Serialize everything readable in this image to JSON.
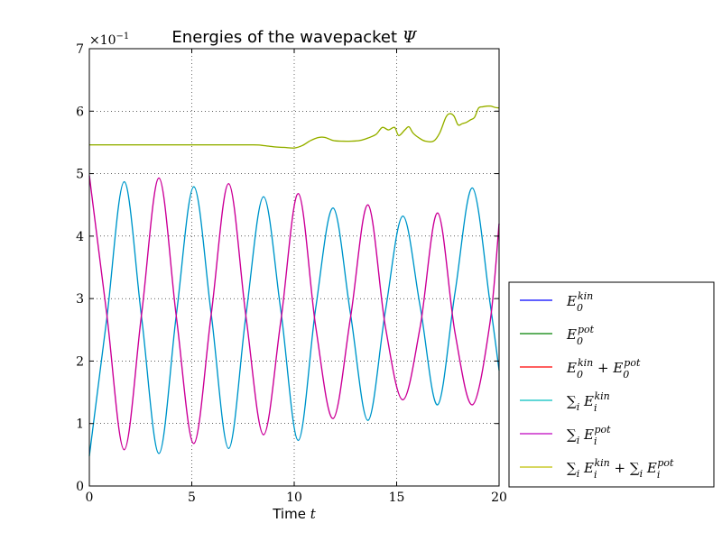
{
  "chart_data": {
    "type": "line",
    "title": "Energies of the wavepacket Ψ",
    "title_text": "Energies of the wavepacket ",
    "title_symbol": "Ψ",
    "xlabel_text": "Time ",
    "xlabel_var": "t",
    "ylabel": "",
    "y_scale_label": "×10",
    "y_scale_exp": "−1",
    "xlim": [
      0,
      20
    ],
    "ylim": [
      0,
      0.7
    ],
    "x_ticks": [
      0,
      5,
      10,
      15,
      20
    ],
    "x_tick_labels": [
      "0",
      "5",
      "10",
      "15",
      "20"
    ],
    "y_ticks": [
      0,
      0.1,
      0.2,
      0.3,
      0.4,
      0.5,
      0.6,
      0.7
    ],
    "y_tick_labels": [
      "0",
      "1",
      "2",
      "3",
      "4",
      "5",
      "6",
      "7"
    ],
    "grid": true,
    "legend_position": "lower-right, outside plot",
    "series": [
      {
        "name": "E_0^kin",
        "color": "#0000ff",
        "x": [],
        "y": []
      },
      {
        "name": "E_0^pot",
        "color": "#008000",
        "x": [],
        "y": []
      },
      {
        "name": "E_0^kin + E_0^pot",
        "color": "#ff0000",
        "x": [],
        "y": []
      },
      {
        "name": "Σ_i E_i^kin",
        "color": "#00bfbf",
        "x": [
          0,
          0.85,
          1.7,
          2.55,
          3.4,
          4.25,
          5.1,
          5.95,
          6.8,
          7.65,
          8.5,
          9.35,
          10.2,
          11.05,
          11.9,
          12.75,
          13.6,
          14.45,
          15.3,
          16.15,
          17.0,
          17.85,
          18.7,
          19.55,
          20.0
        ],
        "y": [
          0.048,
          0.268,
          0.487,
          0.27,
          0.052,
          0.275,
          0.479,
          0.275,
          0.06,
          0.275,
          0.463,
          0.28,
          0.073,
          0.285,
          0.445,
          0.275,
          0.105,
          0.28,
          0.432,
          0.287,
          0.13,
          0.31,
          0.477,
          0.295,
          0.185
        ]
      },
      {
        "name": "Σ_i E_i^pot",
        "color": "#bf00bf",
        "x": [
          0,
          0.85,
          1.7,
          2.55,
          3.4,
          4.25,
          5.1,
          5.95,
          6.8,
          7.65,
          8.5,
          9.35,
          10.2,
          11.05,
          11.9,
          12.75,
          13.6,
          14.45,
          15.3,
          16.15,
          17.0,
          17.85,
          18.7,
          19.55,
          20.0
        ],
        "y": [
          0.497,
          0.275,
          0.058,
          0.275,
          0.493,
          0.27,
          0.068,
          0.275,
          0.484,
          0.27,
          0.082,
          0.265,
          0.468,
          0.255,
          0.108,
          0.27,
          0.45,
          0.255,
          0.138,
          0.255,
          0.437,
          0.245,
          0.13,
          0.26,
          0.42
        ]
      },
      {
        "name": "Σ_i E_i^kin + Σ_i E_i^pot",
        "color": "#bfbf00",
        "x": [
          0,
          2,
          4,
          6,
          8,
          8.5,
          9,
          9.5,
          10,
          10.4,
          10.8,
          11.2,
          11.5,
          11.9,
          12.3,
          12.8,
          13.2,
          13.6,
          14.0,
          14.3,
          14.6,
          14.9,
          15.1,
          15.4,
          15.6,
          15.8,
          16.1,
          16.4,
          16.8,
          17.1,
          17.4,
          17.6,
          17.8,
          18.0,
          18.2,
          18.4,
          18.6,
          18.8,
          19.0,
          19.2,
          19.4,
          19.6,
          19.8,
          20.0
        ],
        "y": [
          0.546,
          0.546,
          0.546,
          0.546,
          0.546,
          0.545,
          0.543,
          0.542,
          0.541,
          0.545,
          0.553,
          0.558,
          0.558,
          0.553,
          0.552,
          0.552,
          0.553,
          0.557,
          0.563,
          0.574,
          0.57,
          0.574,
          0.561,
          0.57,
          0.575,
          0.565,
          0.557,
          0.552,
          0.552,
          0.565,
          0.59,
          0.596,
          0.592,
          0.578,
          0.58,
          0.582,
          0.586,
          0.59,
          0.605,
          0.607,
          0.608,
          0.608,
          0.606,
          0.605
        ]
      }
    ]
  }
}
